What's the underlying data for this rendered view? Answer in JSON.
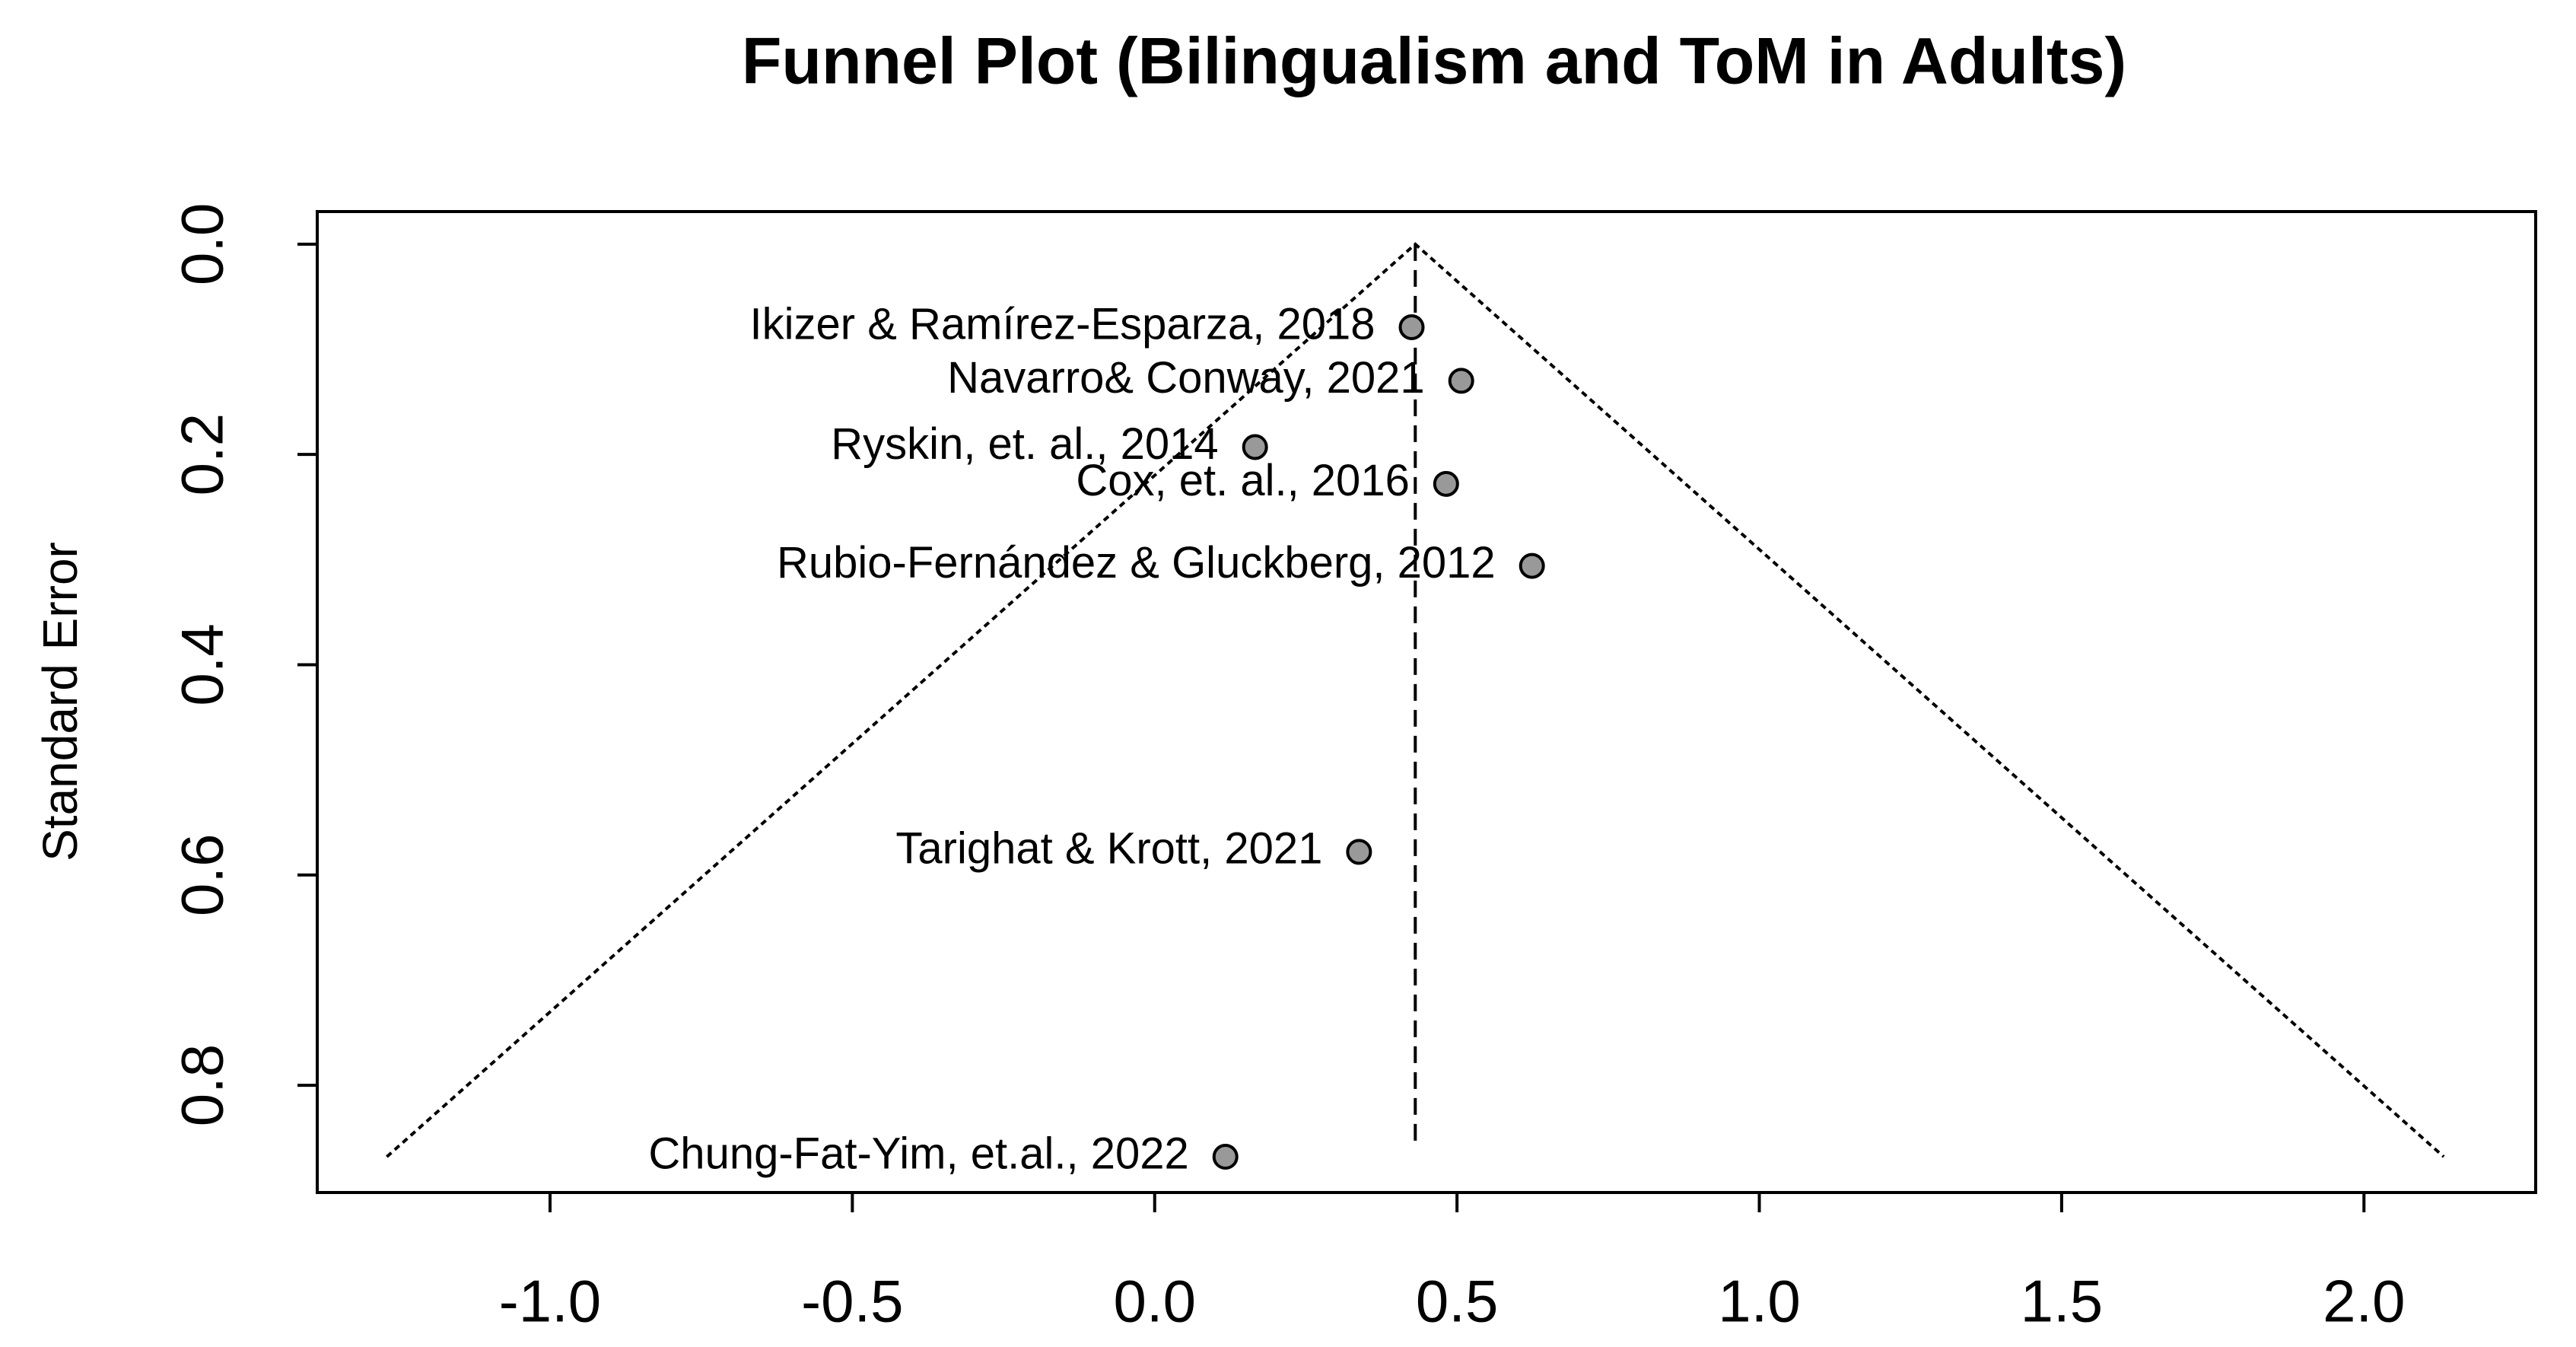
{
  "chart_data": {
    "type": "funnel",
    "title": "Funnel Plot (Bilingualism and ToM in Adults)",
    "ylabel": "Standard Error",
    "labels": [
      "Ikizer & Ramírez-Esparza, 2018",
      "Navarro& Conway, 2021",
      "Ryskin, et. al., 2014",
      "Cox, et. al., 2016",
      "Rubio-Fernández & Gluckberg, 2012",
      "Tarighat & Krott, 2021",
      "Chung-Fat-Yim, et.al., 2022"
    ],
    "x": [
      0.425,
      0.507,
      0.166,
      0.482,
      0.624,
      0.338,
      0.117
    ],
    "values": [
      0.079,
      0.13,
      0.193,
      0.228,
      0.306,
      0.578,
      0.868
    ],
    "color": "#999999",
    "funnel": {
      "x": [
        -1.27,
        0.431,
        2.132
      ],
      "y": [
        0.868,
        0,
        0.868
      ]
    },
    "reference_line": {
      "x": [
        0.431,
        0.431
      ],
      "y": [
        0,
        0.855
      ]
    },
    "xlim": [
      -1.385,
      2.284
    ],
    "ylim": [
      -0.031,
      0.902
    ],
    "y_reversed": true,
    "xticks": [
      {
        "value": -1,
        "label": "-1.0"
      },
      -0.5,
      {
        "value": 0,
        "label": "0.0"
      },
      0.5,
      {
        "value": 1,
        "label": "1.0"
      },
      1.5,
      {
        "value": 2,
        "label": "2.0"
      }
    ],
    "yticks": [
      {
        "value": 0,
        "label": "0.0"
      },
      0.2,
      0.4,
      0.6,
      0.8
    ]
  }
}
